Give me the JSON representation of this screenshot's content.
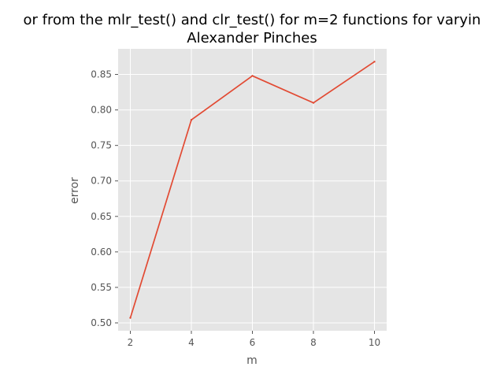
{
  "chart_data": {
    "type": "line",
    "title": [
      "or from the mlr_test() and clr_test() for m=2 functions for varyin",
      "Alexander Pinches"
    ],
    "xlabel": "m",
    "ylabel": "error",
    "x": [
      2,
      4,
      6,
      8,
      10
    ],
    "series": [
      {
        "values": [
          0.507,
          0.786,
          0.848,
          0.81,
          0.868
        ],
        "color": "#E24A33"
      }
    ],
    "xlim": [
      1.6,
      10.4
    ],
    "ylim": [
      0.4889,
      0.8861
    ],
    "xticks": [
      2,
      4,
      6,
      8,
      10
    ],
    "xtick_labels": [
      "2",
      "4",
      "6",
      "8",
      "10"
    ],
    "yticks": [
      0.5,
      0.55,
      0.6,
      0.65,
      0.7,
      0.75,
      0.8,
      0.85
    ],
    "ytick_labels": [
      "0.50",
      "0.55",
      "0.60",
      "0.65",
      "0.70",
      "0.75",
      "0.80",
      "0.85"
    ],
    "grid": true,
    "colors": {
      "plot_background": "#E5E5E5",
      "grid": "#FFFFFF",
      "tick_text": "#555555"
    }
  }
}
